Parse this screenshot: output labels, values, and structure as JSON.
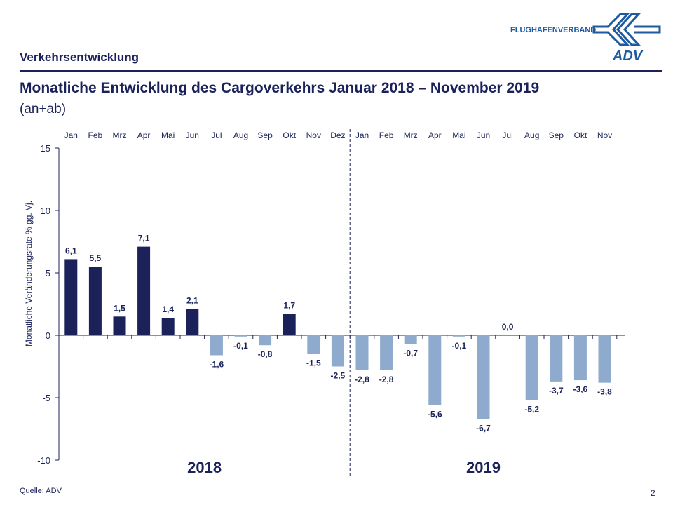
{
  "header": {
    "section": "Verkehrsentwicklung",
    "title": "Monatliche Entwicklung des Cargoverkehrs Januar 2018 – November 2019",
    "subtitle": "(an+ab)",
    "logo_text": "FLUGHAFENVERBAND",
    "logo_mark": "ADV"
  },
  "footer": {
    "source": "Quelle: ADV",
    "page": "2"
  },
  "colors": {
    "text": "#1a2259",
    "bar_positive": "#1a2259",
    "bar_negative": "#8eaacc",
    "logo": "#1e5aa0"
  },
  "chart_data": {
    "type": "bar",
    "categories": [
      "Jan",
      "Feb",
      "Mrz",
      "Apr",
      "Mai",
      "Jun",
      "Jul",
      "Aug",
      "Sep",
      "Okt",
      "Nov",
      "Dez",
      "Jan",
      "Feb",
      "Mrz",
      "Apr",
      "Mai",
      "Jun",
      "Jul",
      "Aug",
      "Sep",
      "Okt",
      "Nov"
    ],
    "values": [
      6.1,
      5.5,
      1.5,
      7.1,
      1.4,
      2.1,
      -1.6,
      -0.1,
      -0.8,
      1.7,
      -1.5,
      -2.5,
      -2.8,
      -2.8,
      -0.7,
      -5.6,
      -0.1,
      -6.7,
      0.0,
      -5.2,
      -3.7,
      -3.6,
      -3.8
    ],
    "data_labels": [
      "6,1",
      "5,5",
      "1,5",
      "7,1",
      "1,4",
      "2,1",
      "-1,6",
      "-0,1",
      "-0,8",
      "1,7",
      "-1,5",
      "-2,5",
      "-2,8",
      "-2,8",
      "-0,7",
      "-5,6",
      "-0,1",
      "-6,7",
      "0,0",
      "-5,2",
      "-3,7",
      "-3,6",
      "-3,8"
    ],
    "year_labels": [
      "2018",
      "2019"
    ],
    "ylabel": "Monatliche Veränderungsrate % gg. Vj.",
    "ylim": [
      -10,
      15
    ],
    "yticks": [
      15,
      10,
      5,
      0,
      -5,
      -10
    ],
    "grid": false
  }
}
